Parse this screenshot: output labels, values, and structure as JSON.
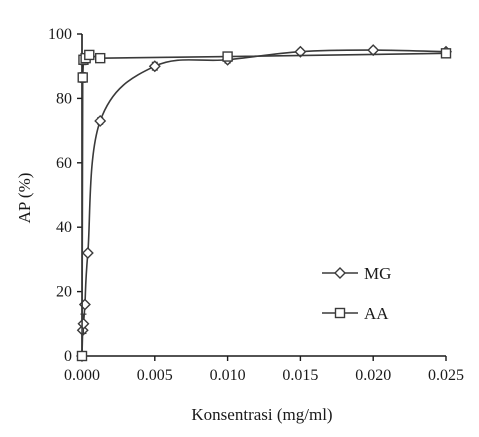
{
  "chart_data": {
    "type": "scatter",
    "title": "",
    "xlabel": "Konsentrasi (mg/ml)",
    "ylabel": "AP (%)",
    "xlim": [
      0,
      0.025
    ],
    "ylim": [
      0,
      100
    ],
    "xticks": [
      "0.000",
      "0.005",
      "0.010",
      "0.015",
      "0.020",
      "0.025"
    ],
    "yticks": [
      "0",
      "20",
      "40",
      "60",
      "80",
      "100"
    ],
    "grid": false,
    "legend_position": "lower-right",
    "series": [
      {
        "name": "MG",
        "marker": "diamond",
        "line": "smooth",
        "color": "#3a3a3a",
        "x": [
          0.0,
          5e-05,
          0.0001,
          0.0002,
          0.0004,
          0.00125,
          0.005,
          0.01,
          0.015,
          0.02,
          0.025
        ],
        "y": [
          0,
          8,
          10,
          16,
          32,
          73,
          90,
          92,
          94.5,
          95,
          94.5
        ],
        "error": [
          0,
          0,
          3,
          0,
          0,
          1,
          1.2,
          1,
          0.8,
          0.8,
          0.8
        ]
      },
      {
        "name": "AA",
        "marker": "square",
        "line": "straight",
        "color": "#3a3a3a",
        "x": [
          0.0,
          5e-05,
          0.0001,
          0.00025,
          0.0005,
          0.00125,
          0.01,
          0.025
        ],
        "y": [
          0,
          86.5,
          92,
          92.5,
          93.5,
          92.5,
          93,
          94
        ],
        "error": [
          0,
          1.5,
          1.5,
          1,
          1,
          1,
          1.2,
          1
        ]
      }
    ]
  }
}
